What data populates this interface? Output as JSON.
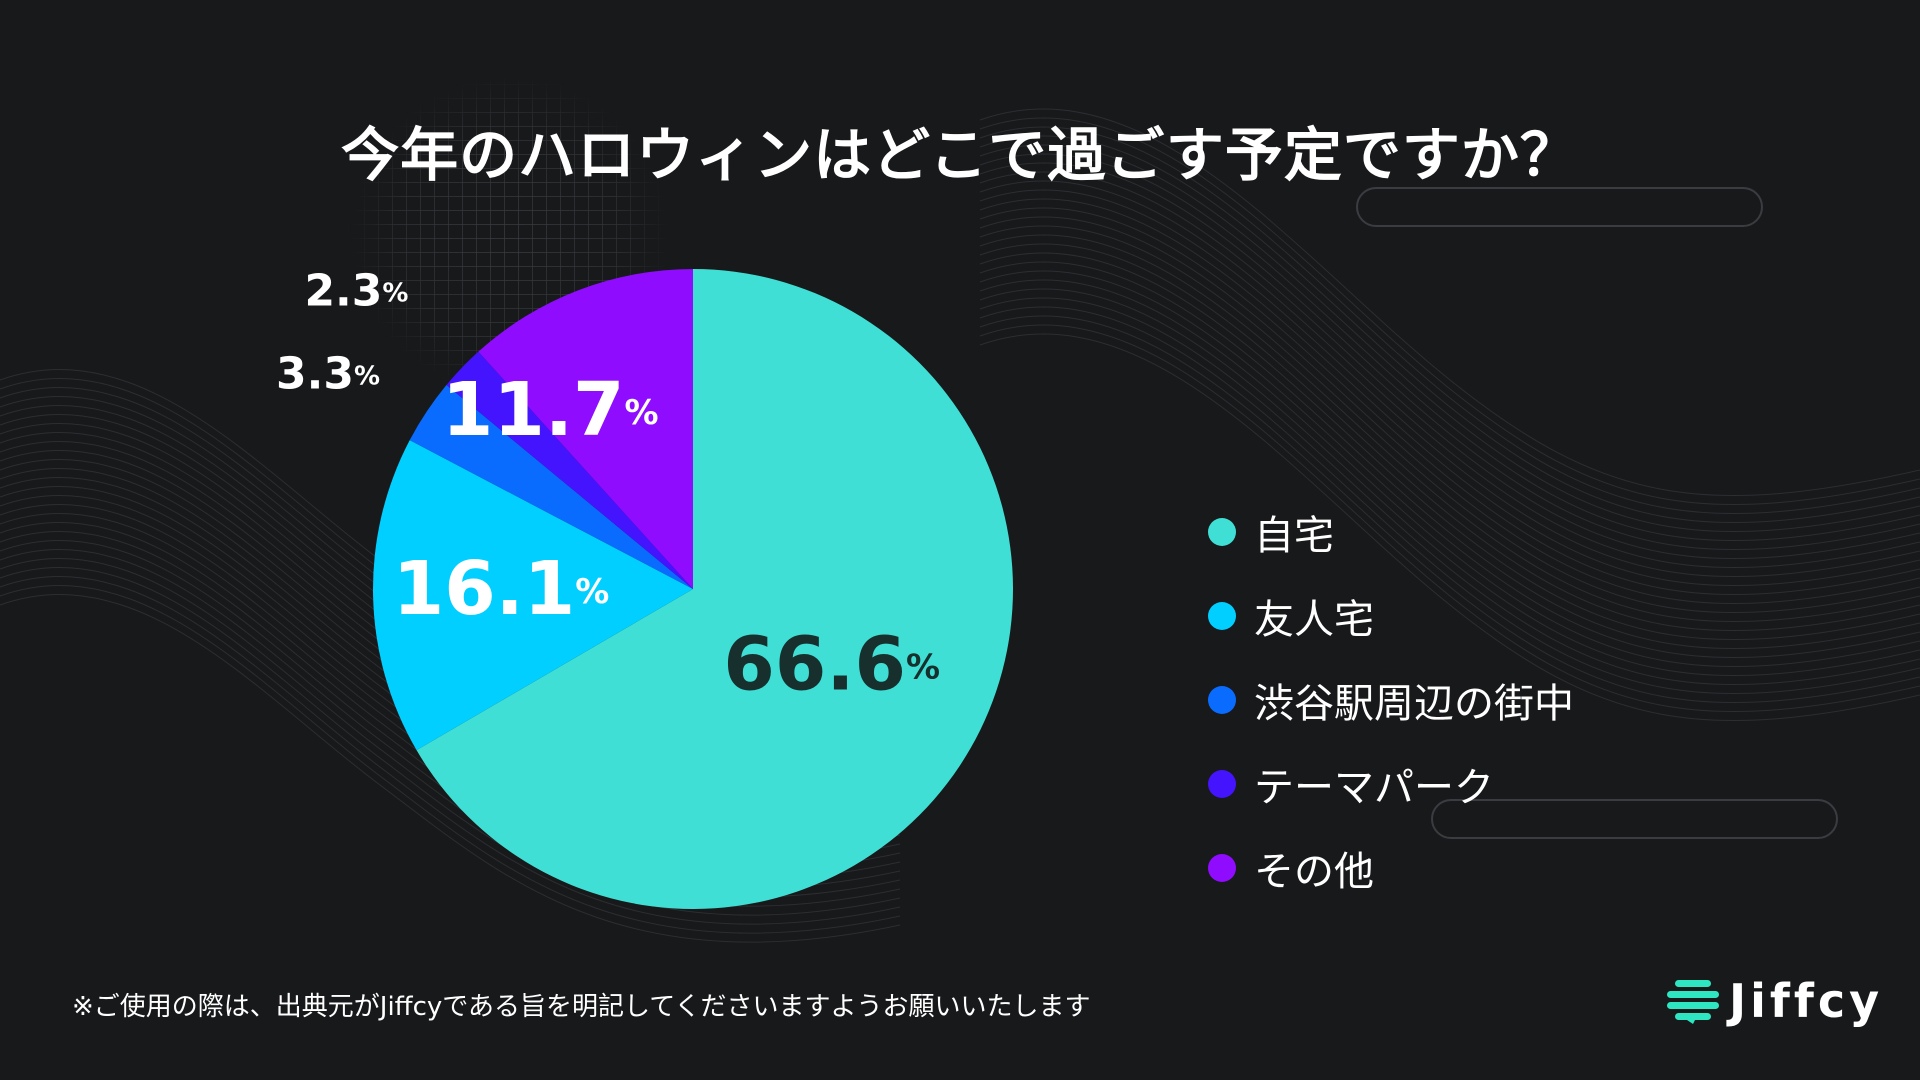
{
  "header": {
    "title": "今年のハロウィンはどこで過ごす予定ですか？"
  },
  "chart_data": {
    "type": "pie",
    "title": "今年のハロウィンはどこで過ごす予定ですか？",
    "unit": "%",
    "slices": [
      {
        "label": "自宅",
        "value": 66.6,
        "value_text": "66.6",
        "color": "#40dfd5"
      },
      {
        "label": "友人宅",
        "value": 16.1,
        "value_text": "16.1",
        "color": "#00cfff"
      },
      {
        "label": "渋谷駅周辺の街中",
        "value": 3.3,
        "value_text": "3.3",
        "color": "#0a6cff"
      },
      {
        "label": "テーマパーク",
        "value": 2.3,
        "value_text": "2.3",
        "color": "#4414ff"
      },
      {
        "label": "その他",
        "value": 11.7,
        "value_text": "11.7",
        "color": "#8f0cff"
      }
    ],
    "legend_position": "right"
  },
  "footer": {
    "note": "※ご使用の際は、出典元がJiffcyである旨を明記してくださいますようお願いいたします",
    "brand": "Jiffcy"
  },
  "colors": {
    "background": "#18191b",
    "text": "#ffffff",
    "dark_label": "#17302e",
    "brand_green": "#2ee6c2"
  }
}
